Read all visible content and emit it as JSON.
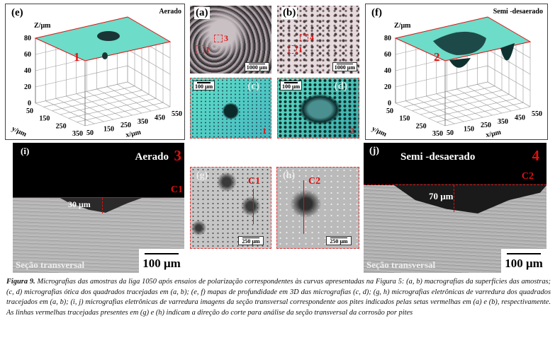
{
  "panels": {
    "e": {
      "label": "(e)",
      "condition": "Aerado",
      "marker": "1",
      "z_label": "Z/μm",
      "y_label": "y/μm",
      "x_label": "x/μm",
      "z_ticks": [
        "80",
        "60",
        "40",
        "20",
        "0"
      ],
      "y_ticks": [
        "50",
        "150",
        "250",
        "350"
      ],
      "x_ticks": [
        "50",
        "150",
        "250",
        "350",
        "450",
        "550"
      ]
    },
    "f": {
      "label": "(f)",
      "condition": "Semi -desaerado",
      "marker": "2",
      "z_label": "Z/μm",
      "y_label": "y/μm",
      "x_label": "x/μm",
      "z_ticks": [
        "80",
        "60",
        "40",
        "20",
        "0"
      ],
      "y_ticks": [
        "50",
        "150",
        "250",
        "350"
      ],
      "x_ticks": [
        "50",
        "150",
        "250",
        "350",
        "450",
        "550"
      ]
    },
    "a": {
      "label": "(a)",
      "boxes": [
        "3",
        "1"
      ],
      "scale": "1000 μm"
    },
    "b": {
      "label": "(b)",
      "boxes": [
        "4",
        "1"
      ],
      "scale": "1000 μm"
    },
    "c": {
      "label": "(c)",
      "scale": "100 μm",
      "marker": "1"
    },
    "d": {
      "label": "(d)",
      "scale": "100 μm",
      "marker": "2"
    },
    "g": {
      "label": "(g)",
      "cut": "C1",
      "scale": "250 μm"
    },
    "h": {
      "label": "(h)",
      "cut": "C2",
      "scale": "250 μm"
    },
    "i": {
      "label": "(i)",
      "condition": "Aerado",
      "marker": "3",
      "cut": "C1",
      "depth": "30 μm",
      "section": "Seção transversal",
      "scale": "100 μm"
    },
    "j": {
      "label": "(j)",
      "condition": "Semi -desaerado",
      "marker": "4",
      "cut": "C2",
      "depth": "70 μm",
      "section": "Seção transversal",
      "scale": "100 μm"
    }
  },
  "caption": {
    "lead": "Figura 9.",
    "text": " Micrografias das amostras da liga 1050 após ensaios de polarização correspondentes às curvas apresentadas na Figura 5: (a, b) macrografias da superfícies das amostras; (c, d) micrografias ótica dos quadrados tracejadas em (a, b); (e, f) mapas de profundidade em 3D das micrografias (c, d); (g, h) micrografias eletrônicas de varredura dos quadrados tracejados em (a, b); (i, j) micrografias eletrônicas de varredura imagens da seção transversal correspondente aos pites indicados pelas setas vermelhas em (a) e (b), respectivamente. As linhas vermelhas tracejadas presentes em (g) e (h) indicam a direção do corte para análise da seção transversal da corrosão por pites"
  },
  "colors": {
    "accent_red": "#e01010",
    "surface_cyan": "#5fd6c0",
    "sem_gray": "#b8b8b8"
  }
}
